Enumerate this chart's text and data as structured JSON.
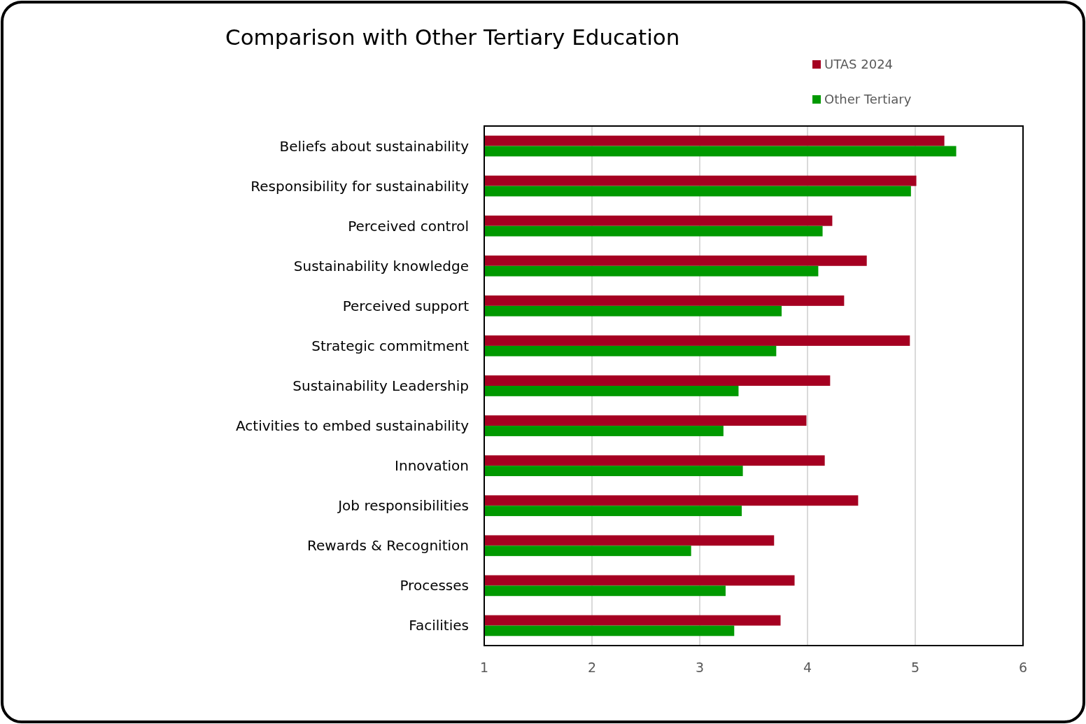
{
  "chart_data": {
    "type": "bar",
    "orientation": "horizontal",
    "title": "Comparison with Other Tertiary Education",
    "categories": [
      "Beliefs about sustainability",
      "Responsibility for sustainability",
      "Perceived control",
      "Sustainability knowledge",
      "Perceived support",
      "Strategic commitment",
      "Sustainability Leadership",
      "Activities to embed sustainability",
      "Innovation",
      "Job responsibilities",
      "Rewards & Recognition",
      "Processes",
      "Facilities"
    ],
    "series": [
      {
        "name": "UTAS 2024",
        "color": "#a50021",
        "values": [
          5.27,
          5.01,
          4.23,
          4.55,
          4.34,
          4.95,
          4.21,
          3.99,
          4.16,
          4.47,
          3.69,
          3.88,
          3.75
        ]
      },
      {
        "name": "Other Tertiary",
        "color": "#009900",
        "values": [
          5.38,
          4.96,
          4.14,
          4.1,
          3.76,
          3.71,
          3.36,
          3.22,
          3.4,
          3.39,
          2.92,
          3.24,
          3.32
        ]
      }
    ],
    "xlim": [
      1,
      6
    ],
    "xticks": [
      1,
      2,
      3,
      4,
      5,
      6
    ],
    "grid": "x",
    "legend": "top right"
  }
}
